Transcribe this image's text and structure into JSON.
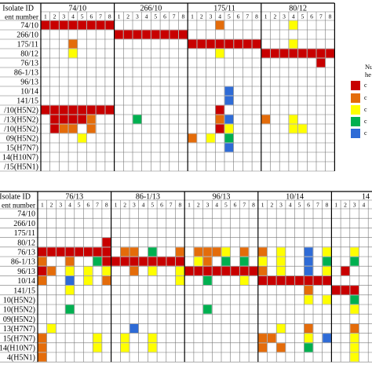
{
  "colors": {
    "red": "#c80000",
    "orange": "#e46c0a",
    "yellow": "#ffff00",
    "green": "#00b050",
    "blue": "#2e6bd6",
    "grid": "#777777",
    "border": "#000000"
  },
  "legend": {
    "title_lines": [
      "Nu",
      "he"
    ],
    "entries": [
      {
        "color": "red",
        "label": "c"
      },
      {
        "color": "orange",
        "label": "c"
      },
      {
        "color": "yellow",
        "label": "c"
      },
      {
        "color": "green",
        "label": "c"
      },
      {
        "color": "blue",
        "label": "c"
      }
    ]
  },
  "chart_data": [
    {
      "type": "heatmap",
      "header_labels": [
        "Isolate ID",
        "ent number"
      ],
      "groups": [
        "74/10",
        "266/10",
        "175/11",
        "80/12"
      ],
      "columns_per_group": 8,
      "column_numbers": [
        "1",
        "2",
        "3",
        "4",
        "5",
        "6",
        "7",
        "8"
      ],
      "rows": [
        "74/10",
        "266/10",
        "175/11",
        "80/12",
        "76/13",
        "86-1/13",
        "96/13",
        "10/14",
        "141/15",
        "/10(H5N2)",
        "/13(H5N2)",
        "/10(H5N2)",
        "09(H5N2)",
        "15(H7N7)",
        "14(H10N7)",
        "/15(H5N1)"
      ],
      "cells": [
        {
          "r": 0,
          "c": 0,
          "v": "red"
        },
        {
          "r": 0,
          "c": 1,
          "v": "red"
        },
        {
          "r": 0,
          "c": 2,
          "v": "red"
        },
        {
          "r": 0,
          "c": 3,
          "v": "red"
        },
        {
          "r": 0,
          "c": 4,
          "v": "red"
        },
        {
          "r": 0,
          "c": 5,
          "v": "red"
        },
        {
          "r": 0,
          "c": 6,
          "v": "red"
        },
        {
          "r": 0,
          "c": 7,
          "v": "red"
        },
        {
          "r": 0,
          "c": 27,
          "v": "yellow"
        },
        {
          "r": 1,
          "c": 8,
          "v": "red"
        },
        {
          "r": 1,
          "c": 9,
          "v": "red"
        },
        {
          "r": 1,
          "c": 10,
          "v": "red"
        },
        {
          "r": 1,
          "c": 11,
          "v": "red"
        },
        {
          "r": 1,
          "c": 12,
          "v": "red"
        },
        {
          "r": 1,
          "c": 13,
          "v": "red"
        },
        {
          "r": 1,
          "c": 14,
          "v": "red"
        },
        {
          "r": 1,
          "c": 15,
          "v": "red"
        },
        {
          "r": 2,
          "c": 16,
          "v": "red"
        },
        {
          "r": 2,
          "c": 17,
          "v": "red"
        },
        {
          "r": 2,
          "c": 18,
          "v": "red"
        },
        {
          "r": 2,
          "c": 19,
          "v": "red"
        },
        {
          "r": 2,
          "c": 20,
          "v": "red"
        },
        {
          "r": 2,
          "c": 21,
          "v": "red"
        },
        {
          "r": 2,
          "c": 22,
          "v": "red"
        },
        {
          "r": 2,
          "c": 23,
          "v": "red"
        },
        {
          "r": 0,
          "c": 19,
          "v": "orange"
        },
        {
          "r": 2,
          "c": 3,
          "v": "orange"
        },
        {
          "r": 2,
          "c": 27,
          "v": "yellow"
        },
        {
          "r": 3,
          "c": 3,
          "v": "yellow"
        },
        {
          "r": 3,
          "c": 19,
          "v": "yellow"
        },
        {
          "r": 3,
          "c": 24,
          "v": "red"
        },
        {
          "r": 3,
          "c": 25,
          "v": "red"
        },
        {
          "r": 3,
          "c": 26,
          "v": "red"
        },
        {
          "r": 3,
          "c": 27,
          "v": "red"
        },
        {
          "r": 3,
          "c": 28,
          "v": "red"
        },
        {
          "r": 3,
          "c": 29,
          "v": "red"
        },
        {
          "r": 3,
          "c": 30,
          "v": "red"
        },
        {
          "r": 3,
          "c": 31,
          "v": "red"
        },
        {
          "r": 4,
          "c": 30,
          "v": "red"
        },
        {
          "r": 7,
          "c": 20,
          "v": "blue"
        },
        {
          "r": 8,
          "c": 20,
          "v": "blue"
        },
        {
          "r": 9,
          "c": 0,
          "v": "red"
        },
        {
          "r": 9,
          "c": 1,
          "v": "red"
        },
        {
          "r": 9,
          "c": 2,
          "v": "red"
        },
        {
          "r": 9,
          "c": 3,
          "v": "red"
        },
        {
          "r": 9,
          "c": 4,
          "v": "red"
        },
        {
          "r": 9,
          "c": 5,
          "v": "red"
        },
        {
          "r": 9,
          "c": 6,
          "v": "red"
        },
        {
          "r": 9,
          "c": 7,
          "v": "red"
        },
        {
          "r": 9,
          "c": 19,
          "v": "red"
        },
        {
          "r": 10,
          "c": 1,
          "v": "red"
        },
        {
          "r": 10,
          "c": 2,
          "v": "red"
        },
        {
          "r": 10,
          "c": 3,
          "v": "red"
        },
        {
          "r": 10,
          "c": 4,
          "v": "red"
        },
        {
          "r": 10,
          "c": 5,
          "v": "orange"
        },
        {
          "r": 10,
          "c": 10,
          "v": "green"
        },
        {
          "r": 10,
          "c": 19,
          "v": "orange"
        },
        {
          "r": 10,
          "c": 20,
          "v": "blue"
        },
        {
          "r": 10,
          "c": 24,
          "v": "orange"
        },
        {
          "r": 10,
          "c": 27,
          "v": "yellow"
        },
        {
          "r": 11,
          "c": 1,
          "v": "red"
        },
        {
          "r": 11,
          "c": 2,
          "v": "orange"
        },
        {
          "r": 11,
          "c": 3,
          "v": "orange"
        },
        {
          "r": 11,
          "c": 5,
          "v": "orange"
        },
        {
          "r": 11,
          "c": 19,
          "v": "red"
        },
        {
          "r": 11,
          "c": 20,
          "v": "yellow"
        },
        {
          "r": 11,
          "c": 27,
          "v": "yellow"
        },
        {
          "r": 11,
          "c": 28,
          "v": "yellow"
        },
        {
          "r": 12,
          "c": 4,
          "v": "yellow"
        },
        {
          "r": 12,
          "c": 16,
          "v": "orange"
        },
        {
          "r": 12,
          "c": 18,
          "v": "yellow"
        },
        {
          "r": 12,
          "c": 20,
          "v": "green"
        },
        {
          "r": 13,
          "c": 20,
          "v": "blue"
        }
      ]
    },
    {
      "type": "heatmap",
      "header_labels": [
        "Isolate ID",
        "ent number"
      ],
      "groups": [
        "76/13",
        "86-1/13",
        "96/13",
        "10/14",
        "14"
      ],
      "columns_per_group": 8,
      "column_numbers": [
        "1",
        "2",
        "3",
        "4",
        "5",
        "6",
        "7",
        "8"
      ],
      "rows": [
        "74/10",
        "266/10",
        "175/11",
        "80/12",
        "76/13",
        "86-1/13",
        "96/13",
        "10/14",
        "141/15",
        "10(H5N2)",
        "10(H5N2)",
        "09(H5N2)",
        "13(H7N7)",
        "15(H7N7)",
        "14(H10N7)",
        "4(H5N1)"
      ],
      "cells": [
        {
          "r": 3,
          "c": 7,
          "v": "red"
        },
        {
          "r": 4,
          "c": 0,
          "v": "red"
        },
        {
          "r": 4,
          "c": 1,
          "v": "red"
        },
        {
          "r": 4,
          "c": 2,
          "v": "red"
        },
        {
          "r": 4,
          "c": 3,
          "v": "red"
        },
        {
          "r": 4,
          "c": 4,
          "v": "red"
        },
        {
          "r": 4,
          "c": 5,
          "v": "red"
        },
        {
          "r": 4,
          "c": 6,
          "v": "red"
        },
        {
          "r": 4,
          "c": 7,
          "v": "red"
        },
        {
          "r": 4,
          "c": 9,
          "v": "orange"
        },
        {
          "r": 4,
          "c": 10,
          "v": "orange"
        },
        {
          "r": 4,
          "c": 12,
          "v": "green"
        },
        {
          "r": 4,
          "c": 15,
          "v": "orange"
        },
        {
          "r": 4,
          "c": 17,
          "v": "orange"
        },
        {
          "r": 4,
          "c": 18,
          "v": "orange"
        },
        {
          "r": 4,
          "c": 19,
          "v": "orange"
        },
        {
          "r": 4,
          "c": 20,
          "v": "yellow"
        },
        {
          "r": 4,
          "c": 22,
          "v": "orange"
        },
        {
          "r": 4,
          "c": 24,
          "v": "orange"
        },
        {
          "r": 4,
          "c": 26,
          "v": "yellow"
        },
        {
          "r": 4,
          "c": 29,
          "v": "blue"
        },
        {
          "r": 4,
          "c": 31,
          "v": "yellow"
        },
        {
          "r": 4,
          "c": 34,
          "v": "yellow"
        },
        {
          "r": 5,
          "c": 0,
          "v": "orange"
        },
        {
          "r": 5,
          "c": 3,
          "v": "orange"
        },
        {
          "r": 5,
          "c": 6,
          "v": "green"
        },
        {
          "r": 5,
          "c": 7,
          "v": "red"
        },
        {
          "r": 5,
          "c": 8,
          "v": "red"
        },
        {
          "r": 5,
          "c": 9,
          "v": "red"
        },
        {
          "r": 5,
          "c": 10,
          "v": "red"
        },
        {
          "r": 5,
          "c": 11,
          "v": "red"
        },
        {
          "r": 5,
          "c": 12,
          "v": "red"
        },
        {
          "r": 5,
          "c": 13,
          "v": "red"
        },
        {
          "r": 5,
          "c": 14,
          "v": "red"
        },
        {
          "r": 5,
          "c": 15,
          "v": "red"
        },
        {
          "r": 5,
          "c": 17,
          "v": "yellow"
        },
        {
          "r": 5,
          "c": 18,
          "v": "orange"
        },
        {
          "r": 5,
          "c": 20,
          "v": "green"
        },
        {
          "r": 5,
          "c": 22,
          "v": "green"
        },
        {
          "r": 5,
          "c": 24,
          "v": "yellow"
        },
        {
          "r": 5,
          "c": 26,
          "v": "yellow"
        },
        {
          "r": 5,
          "c": 29,
          "v": "blue"
        },
        {
          "r": 5,
          "c": 31,
          "v": "green"
        },
        {
          "r": 5,
          "c": 34,
          "v": "green"
        },
        {
          "r": 6,
          "c": 0,
          "v": "red"
        },
        {
          "r": 6,
          "c": 1,
          "v": "orange"
        },
        {
          "r": 6,
          "c": 3,
          "v": "yellow"
        },
        {
          "r": 6,
          "c": 5,
          "v": "yellow"
        },
        {
          "r": 6,
          "c": 7,
          "v": "yellow"
        },
        {
          "r": 6,
          "c": 10,
          "v": "orange"
        },
        {
          "r": 6,
          "c": 12,
          "v": "yellow"
        },
        {
          "r": 6,
          "c": 15,
          "v": "yellow"
        },
        {
          "r": 6,
          "c": 16,
          "v": "red"
        },
        {
          "r": 6,
          "c": 17,
          "v": "red"
        },
        {
          "r": 6,
          "c": 18,
          "v": "red"
        },
        {
          "r": 6,
          "c": 19,
          "v": "red"
        },
        {
          "r": 6,
          "c": 20,
          "v": "red"
        },
        {
          "r": 6,
          "c": 21,
          "v": "red"
        },
        {
          "r": 6,
          "c": 22,
          "v": "red"
        },
        {
          "r": 6,
          "c": 23,
          "v": "red"
        },
        {
          "r": 6,
          "c": 24,
          "v": "orange"
        },
        {
          "r": 6,
          "c": 26,
          "v": "yellow"
        },
        {
          "r": 6,
          "c": 29,
          "v": "blue"
        },
        {
          "r": 6,
          "c": 31,
          "v": "yellow"
        },
        {
          "r": 6,
          "c": 33,
          "v": "red"
        },
        {
          "r": 7,
          "c": 0,
          "v": "orange"
        },
        {
          "r": 7,
          "c": 3,
          "v": "blue"
        },
        {
          "r": 7,
          "c": 5,
          "v": "yellow"
        },
        {
          "r": 7,
          "c": 7,
          "v": "orange"
        },
        {
          "r": 7,
          "c": 15,
          "v": "yellow"
        },
        {
          "r": 7,
          "c": 18,
          "v": "green"
        },
        {
          "r": 7,
          "c": 22,
          "v": "yellow"
        },
        {
          "r": 7,
          "c": 24,
          "v": "red"
        },
        {
          "r": 7,
          "c": 25,
          "v": "red"
        },
        {
          "r": 7,
          "c": 26,
          "v": "red"
        },
        {
          "r": 7,
          "c": 27,
          "v": "red"
        },
        {
          "r": 7,
          "c": 28,
          "v": "red"
        },
        {
          "r": 7,
          "c": 29,
          "v": "red"
        },
        {
          "r": 7,
          "c": 30,
          "v": "red"
        },
        {
          "r": 7,
          "c": 31,
          "v": "red"
        },
        {
          "r": 8,
          "c": 3,
          "v": "yellow"
        },
        {
          "r": 8,
          "c": 29,
          "v": "orange"
        },
        {
          "r": 8,
          "c": 32,
          "v": "red"
        },
        {
          "r": 8,
          "c": 33,
          "v": "red"
        },
        {
          "r": 8,
          "c": 34,
          "v": "red"
        },
        {
          "r": 9,
          "c": 29,
          "v": "yellow"
        },
        {
          "r": 9,
          "c": 31,
          "v": "yellow"
        },
        {
          "r": 9,
          "c": 34,
          "v": "green"
        },
        {
          "r": 10,
          "c": 3,
          "v": "green"
        },
        {
          "r": 10,
          "c": 18,
          "v": "green"
        },
        {
          "r": 10,
          "c": 34,
          "v": "yellow"
        },
        {
          "r": 12,
          "c": 1,
          "v": "yellow"
        },
        {
          "r": 12,
          "c": 10,
          "v": "blue"
        },
        {
          "r": 12,
          "c": 26,
          "v": "yellow"
        },
        {
          "r": 12,
          "c": 29,
          "v": "orange"
        },
        {
          "r": 12,
          "c": 34,
          "v": "orange"
        },
        {
          "r": 13,
          "c": 0,
          "v": "orange"
        },
        {
          "r": 13,
          "c": 6,
          "v": "yellow"
        },
        {
          "r": 13,
          "c": 9,
          "v": "yellow"
        },
        {
          "r": 13,
          "c": 12,
          "v": "yellow"
        },
        {
          "r": 13,
          "c": 24,
          "v": "orange"
        },
        {
          "r": 13,
          "c": 25,
          "v": "orange"
        },
        {
          "r": 13,
          "c": 29,
          "v": "yellow"
        },
        {
          "r": 13,
          "c": 31,
          "v": "blue"
        },
        {
          "r": 13,
          "c": 34,
          "v": "yellow"
        },
        {
          "r": 14,
          "c": 0,
          "v": "orange"
        },
        {
          "r": 14,
          "c": 6,
          "v": "yellow"
        },
        {
          "r": 14,
          "c": 9,
          "v": "yellow"
        },
        {
          "r": 14,
          "c": 12,
          "v": "yellow"
        },
        {
          "r": 14,
          "c": 24,
          "v": "orange"
        },
        {
          "r": 14,
          "c": 26,
          "v": "orange"
        },
        {
          "r": 14,
          "c": 29,
          "v": "green"
        },
        {
          "r": 14,
          "c": 34,
          "v": "yellow"
        },
        {
          "r": 15,
          "c": 0,
          "v": "orange"
        },
        {
          "r": 15,
          "c": 34,
          "v": "yellow"
        }
      ]
    }
  ]
}
